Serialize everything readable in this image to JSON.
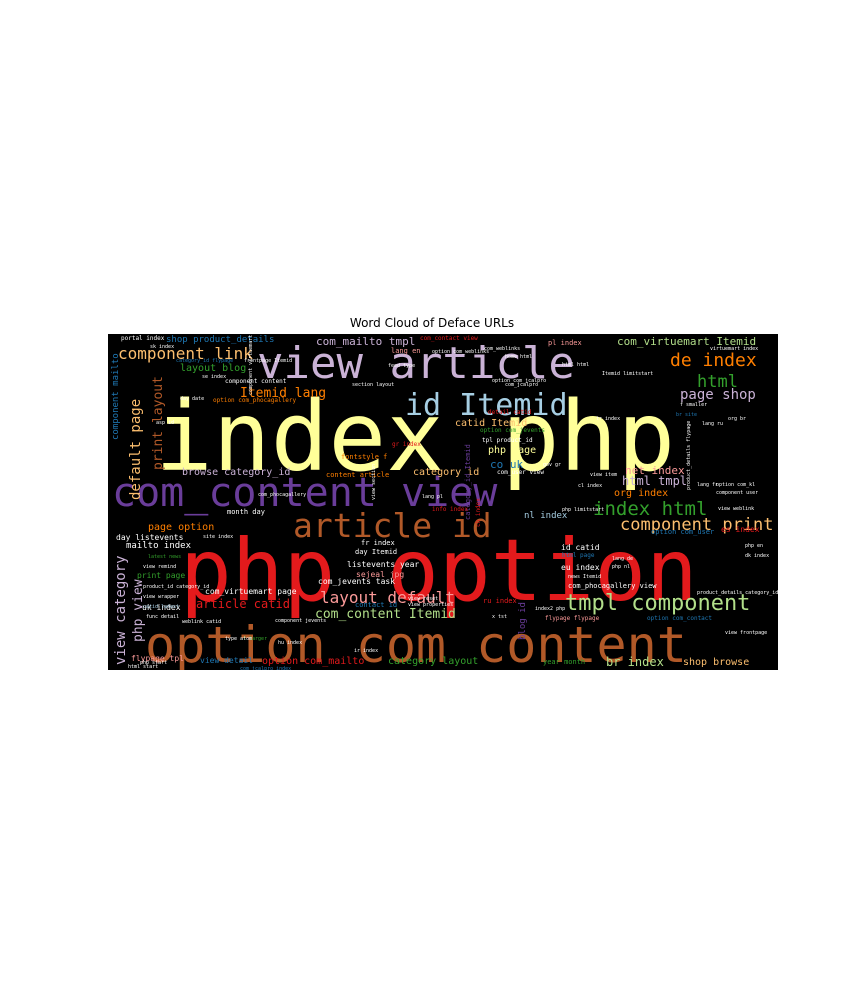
{
  "chart_data": {
    "type": "wordcloud",
    "title": "Word Cloud of Deface URLs",
    "background": "#000000",
    "colormap": "Paired",
    "words": [
      {
        "text": "index php",
        "weight": 100,
        "color": "#ffff99",
        "orient": "h"
      },
      {
        "text": "php option",
        "weight": 92,
        "color": "#e31a1c",
        "orient": "h"
      },
      {
        "text": "option com_content",
        "weight": 60,
        "color": "#b15928",
        "orient": "h"
      },
      {
        "text": "com_content view",
        "weight": 50,
        "color": "#6a3d9a",
        "orient": "h"
      },
      {
        "text": "view article",
        "weight": 46,
        "color": "#cab2d6",
        "orient": "h"
      },
      {
        "text": "article id",
        "weight": 36,
        "color": "#b15928",
        "orient": "h"
      },
      {
        "text": "id Itemid",
        "weight": 32,
        "color": "#a6cee3",
        "orient": "h"
      },
      {
        "text": "tmpl component",
        "weight": 22,
        "color": "#b2df8a",
        "orient": "h"
      },
      {
        "text": "index html",
        "weight": 20,
        "color": "#33a02c",
        "orient": "h"
      },
      {
        "text": "de index",
        "weight": 17,
        "color": "#ff7f00",
        "orient": "h"
      },
      {
        "text": "component print",
        "weight": 17,
        "color": "#fdbf6f",
        "orient": "h"
      },
      {
        "text": "component link",
        "weight": 16,
        "color": "#fdbf6f",
        "orient": "h"
      },
      {
        "text": "html",
        "weight": 17,
        "color": "#33a02c",
        "orient": "h"
      },
      {
        "text": "layout default",
        "weight": 15,
        "color": "#fb9a99",
        "orient": "h"
      },
      {
        "text": "page shop",
        "weight": 15,
        "color": "#cab2d6",
        "orient": "h"
      },
      {
        "text": "option com_virtuemart",
        "weight": 15,
        "color": "#b15928",
        "orient": "v"
      },
      {
        "text": "view category",
        "weight": 14,
        "color": "#cab2d6",
        "orient": "v"
      },
      {
        "text": "default page",
        "weight": 14,
        "color": "#fdbf6f",
        "orient": "v"
      },
      {
        "text": "print layout",
        "weight": 13,
        "color": "#b15928",
        "orient": "v"
      },
      {
        "text": "php view",
        "weight": 13,
        "color": "#cab2d6",
        "orient": "v"
      },
      {
        "text": "Itemid lang",
        "weight": 13,
        "color": "#ff7f00",
        "orient": "h"
      },
      {
        "text": "com_content Itemid",
        "weight": 13,
        "color": "#b2df8a",
        "orient": "h"
      },
      {
        "text": "article catid",
        "weight": 12,
        "color": "#e31a1c",
        "orient": "h"
      },
      {
        "text": "html tmpl",
        "weight": 12,
        "color": "#cab2d6",
        "orient": "h"
      },
      {
        "text": "net index",
        "weight": 11,
        "color": "#fb9a99",
        "orient": "h"
      },
      {
        "text": "org index",
        "weight": 10,
        "color": "#ff7f00",
        "orient": "h"
      },
      {
        "text": "br index",
        "weight": 12,
        "color": "#b2df8a",
        "orient": "h"
      },
      {
        "text": "co uk",
        "weight": 11,
        "color": "#1f78b4",
        "orient": "h"
      },
      {
        "text": "com_virtuemart Itemid",
        "weight": 11,
        "color": "#b2df8a",
        "orient": "h"
      },
      {
        "text": "com_mailto tmpl",
        "weight": 11,
        "color": "#cab2d6",
        "orient": "h"
      },
      {
        "text": "option com_mailto",
        "weight": 10,
        "color": "#e31a1c",
        "orient": "h"
      },
      {
        "text": "category layout",
        "weight": 10,
        "color": "#33a02c",
        "orient": "h"
      },
      {
        "text": "shop browse",
        "weight": 10,
        "color": "#fdbf6f",
        "orient": "h"
      },
      {
        "text": "page option",
        "weight": 10,
        "color": "#ff7f00",
        "orient": "h"
      },
      {
        "text": "layout blog",
        "weight": 10,
        "color": "#33a02c",
        "orient": "h"
      },
      {
        "text": "browse category_id",
        "weight": 10,
        "color": "#cab2d6",
        "orient": "h"
      },
      {
        "text": "catid Itemid",
        "weight": 10,
        "color": "#fdbf6f",
        "orient": "h"
      },
      {
        "text": "category id",
        "weight": 10,
        "color": "#fdbf6f",
        "orient": "h"
      },
      {
        "text": "php page",
        "weight": 10,
        "color": "#ffff99",
        "orient": "h"
      },
      {
        "text": "mailto index",
        "weight": 9,
        "color": "#ffffff",
        "orient": "h"
      },
      {
        "text": "nl index",
        "weight": 9,
        "color": "#a6cee3",
        "orient": "h"
      },
      {
        "text": "shop product_details",
        "weight": 9,
        "color": "#1f78b4",
        "orient": "h"
      },
      {
        "text": "component mailto",
        "weight": 9,
        "color": "#1f78b4",
        "orient": "v"
      },
      {
        "text": "flypage tpl",
        "weight": 8,
        "color": "#fb9a99",
        "orient": "h"
      },
      {
        "text": "view detail",
        "weight": 8,
        "color": "#1f78b4",
        "orient": "h"
      },
      {
        "text": "blog id",
        "weight": 9,
        "color": "#6a3d9a",
        "orient": "v"
      },
      {
        "text": "print page",
        "weight": 8,
        "color": "#33a02c",
        "orient": "h"
      },
      {
        "text": "day listevents",
        "weight": 8,
        "color": "#ffffff",
        "orient": "h"
      },
      {
        "text": "uk index",
        "weight": 8,
        "color": "#ffffff",
        "orient": "h"
      },
      {
        "text": "com_virtuemart page",
        "weight": 8,
        "color": "#ffffff",
        "orient": "h"
      },
      {
        "text": "com_jevents task",
        "weight": 8,
        "color": "#ffffff",
        "orient": "h"
      },
      {
        "text": "listevents year",
        "weight": 8,
        "color": "#ffffff",
        "orient": "h"
      },
      {
        "text": "sejeal jpg",
        "weight": 8,
        "color": "#fb9a99",
        "orient": "h"
      },
      {
        "text": "id catid",
        "weight": 8,
        "color": "#ffffff",
        "orient": "h"
      },
      {
        "text": "eu index",
        "weight": 8,
        "color": "#ffffff",
        "orient": "h"
      },
      {
        "text": "year month",
        "weight": 7,
        "color": "#33a02c",
        "orient": "h"
      },
      {
        "text": "month day",
        "weight": 7,
        "color": "#ffffff",
        "orient": "h"
      },
      {
        "text": "es index",
        "weight": 8,
        "color": "#e31a1c",
        "orient": "h"
      },
      {
        "text": "com_phocagallery view",
        "weight": 7,
        "color": "#ffffff",
        "orient": "h"
      },
      {
        "text": "option com_user",
        "weight": 7,
        "color": "#1f78b4",
        "orient": "h"
      },
      {
        "text": "ru index",
        "weight": 7,
        "color": "#e31a1c",
        "orient": "h"
      },
      {
        "text": "contact id",
        "weight": 7,
        "color": "#1f78b4",
        "orient": "h"
      },
      {
        "text": "fontstyle f",
        "weight": 7,
        "color": "#ff7f00",
        "orient": "h"
      },
      {
        "text": "content article",
        "weight": 7,
        "color": "#ff7f00",
        "orient": "h"
      },
      {
        "text": "fr index",
        "weight": 7,
        "color": "#ffffff",
        "orient": "h"
      },
      {
        "text": "day Itemid",
        "weight": 7,
        "color": "#ffffff",
        "orient": "h"
      },
      {
        "text": "pl index",
        "weight": 7,
        "color": "#fb9a99",
        "orient": "h"
      },
      {
        "text": "lang en",
        "weight": 7,
        "color": "#fb9a99",
        "orient": "h"
      },
      {
        "text": "portal index",
        "weight": 6,
        "color": "#ffffff",
        "orient": "h"
      },
      {
        "text": "option com_jevents",
        "weight": 6,
        "color": "#33a02c",
        "orient": "h"
      },
      {
        "text": "detail catid",
        "weight": 6,
        "color": "#e31a1c",
        "orient": "h"
      },
      {
        "text": "tpl product_id",
        "weight": 6,
        "color": "#ffffff",
        "orient": "h"
      },
      {
        "text": "component content",
        "weight": 6,
        "color": "#ffffff",
        "orient": "h"
      },
      {
        "text": "option com_phocagallery",
        "weight": 6,
        "color": "#ff7f00",
        "orient": "h"
      },
      {
        "text": "html page",
        "weight": 6,
        "color": "#1f78b4",
        "orient": "h"
      },
      {
        "text": "com_contact view",
        "weight": 6,
        "color": "#e31a1c",
        "orient": "h"
      },
      {
        "text": "category_id Itemid",
        "weight": 7,
        "color": "#6a3d9a",
        "orient": "v"
      },
      {
        "text": "gr index",
        "weight": 6,
        "color": "#e31a1c",
        "orient": "h"
      },
      {
        "text": "ch index",
        "weight": 6,
        "color": "#e31a1c",
        "orient": "v"
      },
      {
        "text": "com_user view",
        "weight": 6,
        "color": "#ffffff",
        "orient": "h"
      },
      {
        "text": "info index",
        "weight": 6,
        "color": "#e31a1c",
        "orient": "h"
      },
      {
        "text": "flypage flypage",
        "weight": 6,
        "color": "#fb9a99",
        "orient": "h"
      },
      {
        "text": "option com_contact",
        "weight": 6,
        "color": "#1f78b4",
        "orient": "h"
      },
      {
        "text": "catid latest",
        "weight": 5,
        "color": "#a6cee3",
        "orient": "h"
      },
      {
        "text": "site index",
        "weight": 5,
        "color": "#ffffff",
        "orient": "h"
      },
      {
        "text": "view wrapper",
        "weight": 5,
        "color": "#ffffff",
        "orient": "h"
      },
      {
        "text": "product_id category_id",
        "weight": 5,
        "color": "#ffffff",
        "orient": "h"
      },
      {
        "text": "php limitstart",
        "weight": 5,
        "color": "#ffffff",
        "orient": "h"
      },
      {
        "text": "product_details category_id",
        "weight": 5,
        "color": "#ffffff",
        "orient": "h"
      },
      {
        "text": "view frontpage",
        "weight": 5,
        "color": "#ffffff",
        "orient": "h"
      },
      {
        "text": "sk index",
        "weight": 5,
        "color": "#ffffff",
        "orient": "h"
      },
      {
        "text": "lang fr",
        "weight": 5,
        "color": "#ffffff",
        "orient": "h"
      },
      {
        "text": "lang de",
        "weight": 5,
        "color": "#ffffff",
        "orient": "h"
      },
      {
        "text": "php nl",
        "weight": 5,
        "color": "#ffffff",
        "orient": "h"
      },
      {
        "text": "cl index",
        "weight": 5,
        "color": "#ffffff",
        "orient": "h"
      },
      {
        "text": "gov gr",
        "weight": 5,
        "color": "#ffffff",
        "orient": "h"
      },
      {
        "text": "dk index",
        "weight": 5,
        "color": "#ffffff",
        "orient": "h"
      },
      {
        "text": "php en",
        "weight": 5,
        "color": "#ffffff",
        "orient": "h"
      },
      {
        "text": "asp id",
        "weight": 5,
        "color": "#ffffff",
        "orient": "h"
      },
      {
        "text": "day date",
        "weight": 5,
        "color": "#ffffff",
        "orient": "h"
      },
      {
        "text": "view remind",
        "weight": 5,
        "color": "#ffffff",
        "orient": "h"
      },
      {
        "text": "latest news",
        "weight": 5,
        "color": "#33a02c",
        "orient": "h"
      },
      {
        "text": "func detail",
        "weight": 5,
        "color": "#ffffff",
        "orient": "h"
      },
      {
        "text": "weblink catid",
        "weight": 5,
        "color": "#ffffff",
        "orient": "h"
      },
      {
        "text": "html start",
        "weight": 5,
        "color": "#ffffff",
        "orient": "h"
      },
      {
        "text": "f larger",
        "weight": 5,
        "color": "#33a02c",
        "orient": "h"
      },
      {
        "text": "ir index",
        "weight": 5,
        "color": "#ffffff",
        "orient": "h"
      },
      {
        "text": "view properties",
        "weight": 5,
        "color": "#ffffff",
        "orient": "h"
      },
      {
        "text": "index2 php",
        "weight": 5,
        "color": "#ffffff",
        "orient": "h"
      },
      {
        "text": "x tst",
        "weight": 5,
        "color": "#ffffff",
        "orient": "h"
      },
      {
        "text": "view reset",
        "weight": 5,
        "color": "#ffffff",
        "orient": "h"
      },
      {
        "text": "news Itemid",
        "weight": 5,
        "color": "#ffffff",
        "orient": "h"
      },
      {
        "text": "component jevents",
        "weight": 5,
        "color": "#ffffff",
        "orient": "h"
      },
      {
        "text": "view item",
        "weight": 5,
        "color": "#ffffff",
        "orient": "h"
      },
      {
        "text": "tr index",
        "weight": 5,
        "color": "#ffffff",
        "orient": "h"
      },
      {
        "text": "lang ru",
        "weight": 5,
        "color": "#ffffff",
        "orient": "h"
      },
      {
        "text": "org br",
        "weight": 5,
        "color": "#ffffff",
        "orient": "h"
      },
      {
        "text": "br site",
        "weight": 5,
        "color": "#1f78b4",
        "orient": "h"
      },
      {
        "text": "f smaller",
        "weight": 5,
        "color": "#ffffff",
        "orient": "h"
      },
      {
        "text": "component user",
        "weight": 5,
        "color": "#ffffff",
        "orient": "h"
      },
      {
        "text": "view weblink",
        "weight": 5,
        "color": "#ffffff",
        "orient": "h"
      },
      {
        "text": "option com_kl",
        "weight": 5,
        "color": "#ffffff",
        "orient": "h"
      },
      {
        "text": "html html",
        "weight": 5,
        "color": "#ffffff",
        "orient": "h"
      },
      {
        "text": "Itemid limitstart",
        "weight": 5,
        "color": "#ffffff",
        "orient": "h"
      },
      {
        "text": "virtuemart index",
        "weight": 5,
        "color": "#ffffff",
        "orient": "h"
      },
      {
        "text": "section layout",
        "weight": 5,
        "color": "#ffffff",
        "orient": "h"
      },
      {
        "text": "feed type",
        "weight": 5,
        "color": "#ffffff",
        "orient": "h"
      },
      {
        "text": "com_jcalpro",
        "weight": 5,
        "color": "#ffffff",
        "orient": "h"
      },
      {
        "text": "option com_jcalpro",
        "weight": 5,
        "color": "#ffffff",
        "orient": "h"
      },
      {
        "text": "lang pl",
        "weight": 5,
        "color": "#ffffff",
        "orient": "h"
      },
      {
        "text": "view section",
        "weight": 5,
        "color": "#ffffff",
        "orient": "v"
      },
      {
        "text": "type atom",
        "weight": 5,
        "color": "#ffffff",
        "orient": "h"
      },
      {
        "text": "hu index",
        "weight": 5,
        "color": "#ffffff",
        "orient": "h"
      },
      {
        "text": "com_jcalpro index",
        "weight": 5,
        "color": "#1f78b4",
        "orient": "h"
      },
      {
        "text": "frontpage Itemid",
        "weight": 5,
        "color": "#ffffff",
        "orient": "h"
      },
      {
        "text": "home html",
        "weight": 5,
        "color": "#ffffff",
        "orient": "h"
      },
      {
        "text": "com_weblinks",
        "weight": 5,
        "color": "#ffffff",
        "orient": "h"
      },
      {
        "text": "option com_weblinks",
        "weight": 5,
        "color": "#ffffff",
        "orient": "h"
      },
      {
        "text": "php start",
        "weight": 5,
        "color": "#ffffff",
        "orient": "h"
      },
      {
        "text": "category_id flypage",
        "weight": 5,
        "color": "#1f78b4",
        "orient": "h"
      },
      {
        "text": "se index",
        "weight": 5,
        "color": "#ffffff",
        "orient": "h"
      },
      {
        "text": "component virtuemart",
        "weight": 5,
        "color": "#ffffff",
        "orient": "v"
      },
      {
        "text": "product_details flypage",
        "weight": 5,
        "color": "#ffffff",
        "orient": "v"
      },
      {
        "text": "com_phocagallery",
        "weight": 5,
        "color": "#ffffff",
        "orient": "h"
      }
    ]
  }
}
